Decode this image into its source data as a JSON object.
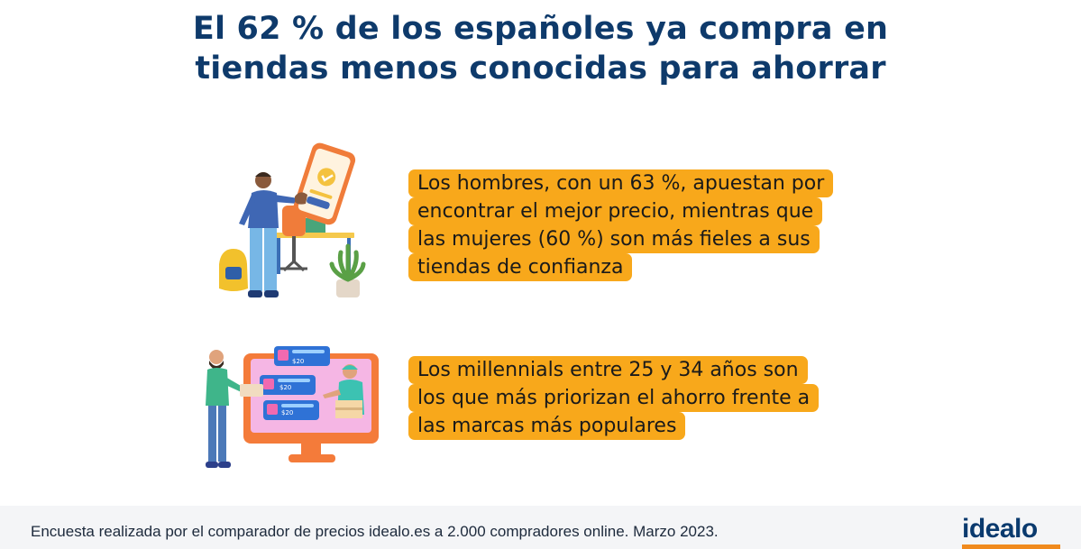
{
  "title": {
    "line1": "El 62 % de los españoles ya compra en",
    "line2": "tiendas menos conocidas para ahorrar"
  },
  "callout1": {
    "lines": [
      "Los hombres, con un 63 %, apuestan por",
      "encontrar el mejor precio, mientras que",
      "las mujeres (60 %) son más fieles a sus",
      "tiendas de confianza"
    ]
  },
  "callout2": {
    "lines": [
      "Los millennials entre 25 y 34 años son",
      "los que más priorizan el ahorro frente a",
      "las marcas más populares"
    ]
  },
  "illustration2": {
    "prices": [
      "$20",
      "$20",
      "$20"
    ]
  },
  "footer": {
    "source": "Encuesta realizada por el comparador de precios idealo.es a 2.000 compradores online. Marzo 2023."
  },
  "logo": {
    "text": "idealo"
  },
  "colors": {
    "title": "#0e3a6b",
    "highlight": "#f8a81b",
    "logo": "#0a3a6e",
    "logo_bar": "#f08a1d",
    "footer_bg": "#f4f5f7"
  }
}
